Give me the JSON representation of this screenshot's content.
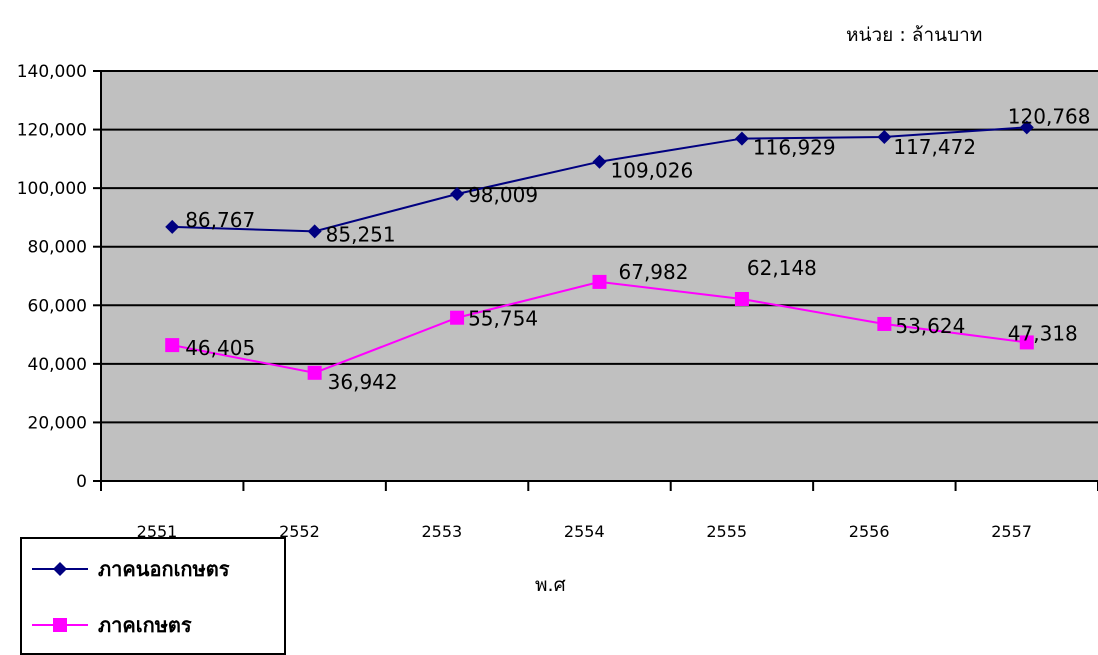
{
  "unit_note": "หน่วย : ล้านบาท",
  "chart_data": {
    "type": "line",
    "categories": [
      "2551",
      "2552",
      "2553",
      "2554",
      "2555",
      "2556",
      "2557"
    ],
    "series": [
      {
        "name": "ภาคนอกเกษตร",
        "values": [
          86767,
          85251,
          98009,
          109026,
          116929,
          117472,
          120768
        ],
        "labels": [
          "86,767",
          "85,251",
          "98,009",
          "109,026",
          "116,929",
          "117,472",
          "120,768"
        ],
        "color": "#000080",
        "marker": "diamond"
      },
      {
        "name": "ภาคเกษตร",
        "values": [
          46405,
          36942,
          55754,
          67982,
          62148,
          53624,
          47318
        ],
        "labels": [
          "46,405",
          "36,942",
          "55,754",
          "67,982",
          "62,148",
          "53,624",
          "47,318"
        ],
        "color": "#ff00ff",
        "marker": "square"
      }
    ],
    "xlabel": "พ.ศ",
    "ylabel": "",
    "ylim": [
      0,
      140000
    ],
    "yticks": [
      0,
      20000,
      40000,
      60000,
      80000,
      100000,
      120000,
      140000
    ],
    "ytick_labels": [
      "0",
      "20,000",
      "40,000",
      "60,000",
      "80,000",
      "100,000",
      "120,000",
      "140,000"
    ],
    "grid": true,
    "plot_background": "#c0c0c0",
    "legend_position": "bottom-left"
  }
}
